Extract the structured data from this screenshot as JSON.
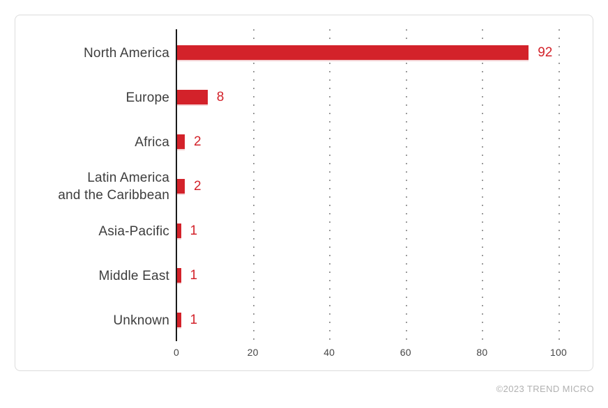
{
  "chart_data": {
    "type": "bar",
    "orientation": "horizontal",
    "title": "",
    "xlabel": "",
    "ylabel": "",
    "categories": [
      "North America",
      "Europe",
      "Africa",
      "Latin America\nand the Caribbean",
      "Asia-Pacific",
      "Middle East",
      "Unknown"
    ],
    "values": [
      92,
      8,
      2,
      2,
      1,
      1,
      1
    ],
    "value_labels": [
      "92",
      "8",
      "2",
      "2",
      "1",
      "1",
      "1"
    ],
    "xlim": [
      0,
      100
    ],
    "x_ticks": [
      0,
      20,
      40,
      60,
      80,
      100
    ],
    "grid": "vertical dotted gridlines at ticks, no horizontal grid",
    "legend": "none"
  },
  "footer": {
    "copyright": "©2023 TREND MICRO"
  },
  "colors": {
    "bg": "#ffffff",
    "card-border": "#dcdcdc",
    "axis-line": "#1a1a1a",
    "grid-dot": "#9b9b9b",
    "bar-color": "#d3222a",
    "bar-edge": "#f5d2d4",
    "value-label": "#d3222a",
    "category-label": "#3d3d3d",
    "tick-label": "#454545",
    "footer-text": "#b1b1b1"
  }
}
